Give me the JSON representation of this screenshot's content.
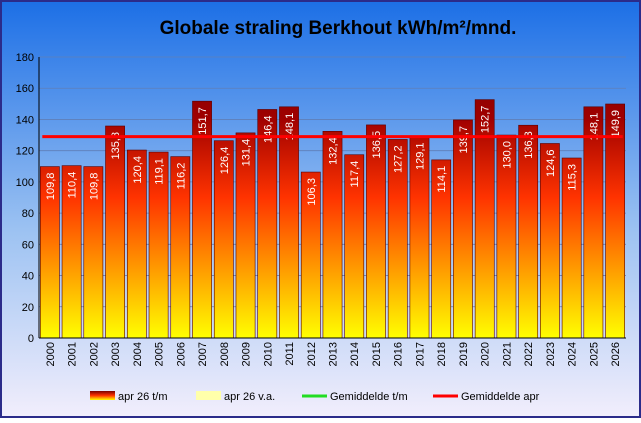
{
  "chart_data": {
    "type": "bar",
    "title": "Globale straling Berkhout kWh/m²/mnd.",
    "categories": [
      "2000",
      "2001",
      "2002",
      "2003",
      "2004",
      "2005",
      "2006",
      "2007",
      "2008",
      "2009",
      "2010",
      "2011",
      "2012",
      "2013",
      "2014",
      "2015",
      "2016",
      "2017",
      "2018",
      "2019",
      "2020",
      "2021",
      "2022",
      "2023",
      "2024",
      "2025",
      "2026"
    ],
    "values": [
      109.8,
      110.4,
      109.8,
      135.8,
      120.4,
      119.1,
      116.2,
      151.7,
      126.4,
      131.4,
      146.4,
      148.1,
      106.3,
      132.4,
      117.4,
      136.5,
      127.2,
      129.1,
      114.1,
      139.7,
      152.7,
      130.0,
      136.3,
      124.6,
      115.3,
      148.1,
      149.9
    ],
    "value_labels": [
      "109,8",
      "110,4",
      "109,8",
      "135,8",
      "120,4",
      "119,1",
      "116,2",
      "151,7",
      "126,4",
      "131,4",
      "146,4",
      "148,1",
      "106,3",
      "132,4",
      "117,4",
      "136,5",
      "127,2",
      "129,1",
      "114,1",
      "139,7",
      "152,7",
      "130,0",
      "136,3",
      "124,6",
      "115,3",
      "148,1",
      "149,9"
    ],
    "ylim": [
      0,
      180
    ],
    "yticks": [
      "0",
      "20",
      "40",
      "60",
      "80",
      "100",
      "120",
      "140",
      "160",
      "180"
    ],
    "average_line": 129.0,
    "grid": true,
    "legend_position": "bottom",
    "legend": [
      {
        "label": "apr 26 t/m",
        "kind": "bar-gradient"
      },
      {
        "label": "apr 26 v.a.",
        "kind": "bar-pale"
      },
      {
        "label": "Gemiddelde t/m",
        "kind": "line",
        "color": "#22dd22"
      },
      {
        "label": "Gemiddelde apr",
        "kind": "line",
        "color": "#ff0000"
      }
    ],
    "colors": {
      "background_top": "#1c6fe6",
      "background_bottom": "#f2eefc",
      "bar_top": "#7a0000",
      "bar_mid": "#ff3300",
      "bar_bottom": "#ffff00",
      "bar_pale": "#ffffaa",
      "average_line": "#ff0000",
      "frame_border": "#2b2b8a"
    }
  }
}
